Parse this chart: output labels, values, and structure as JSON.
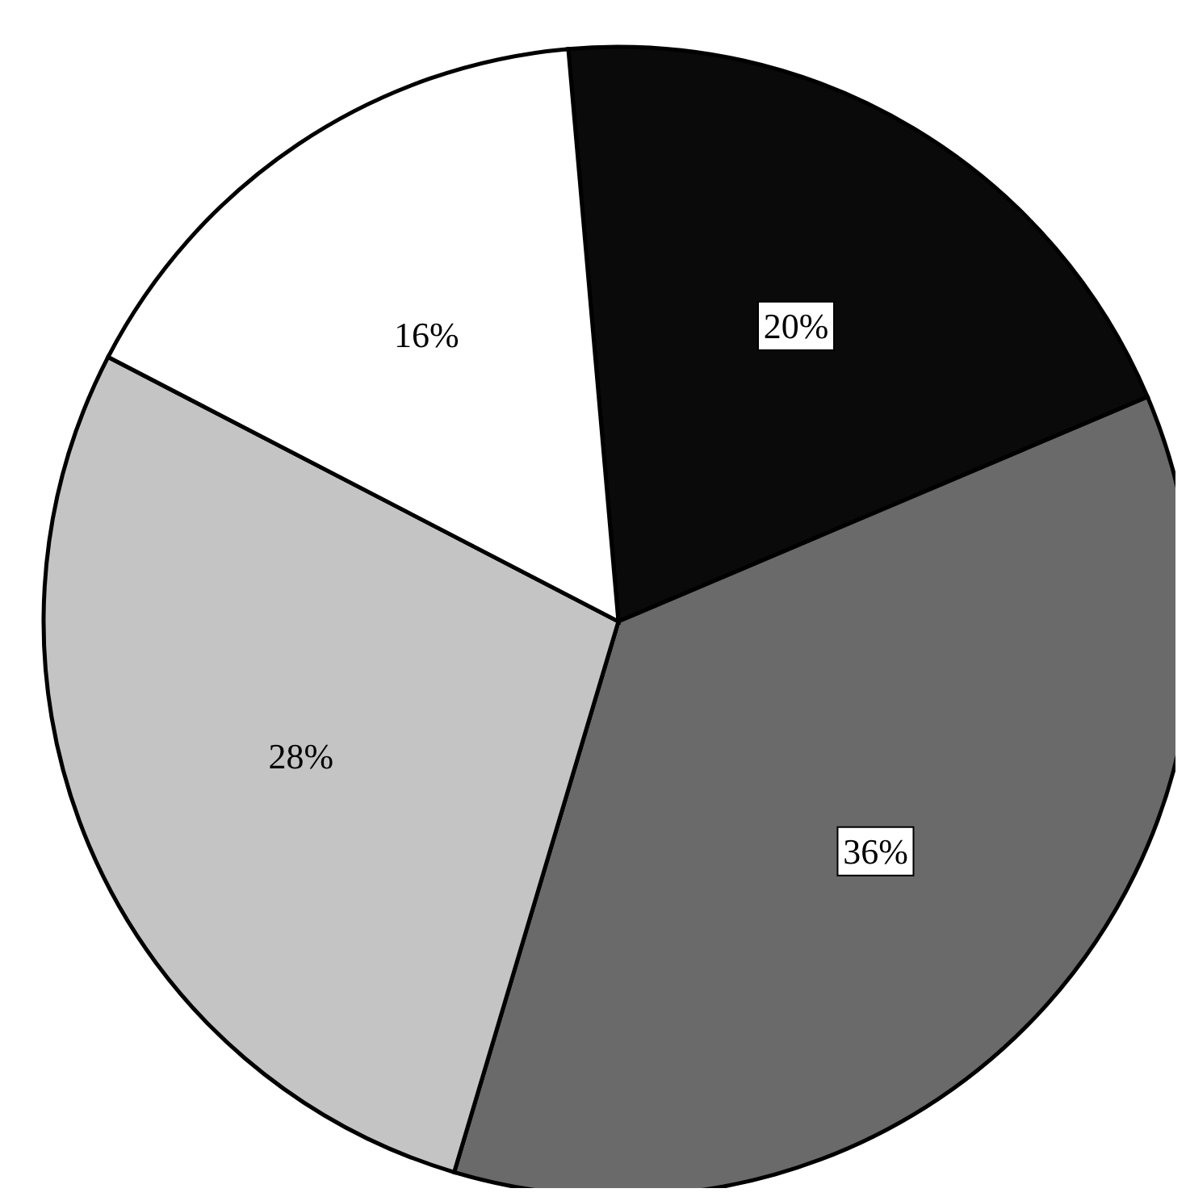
{
  "chart_data": {
    "type": "pie",
    "categories": [
      null,
      null,
      null,
      null
    ],
    "values": [
      20,
      36,
      28,
      16
    ],
    "colors": [
      "#0a0a0a",
      "#6a6a6a",
      "#c4c4c4",
      "#ffffff"
    ],
    "value_labels": [
      "20%",
      "36%",
      "28%",
      "16%"
    ]
  }
}
